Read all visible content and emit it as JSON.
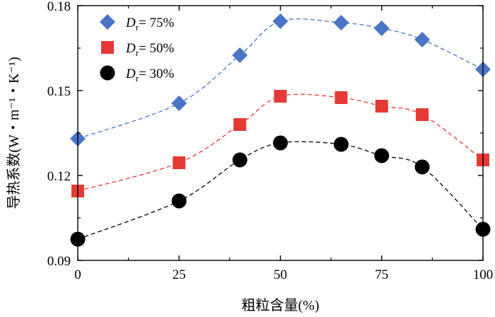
{
  "chart_data": {
    "type": "scatter",
    "xlabel": "粗粒含量(%)",
    "ylabel": "导热系数(W・m⁻¹・K⁻¹)",
    "xlim": [
      0,
      100
    ],
    "ylim": [
      0.09,
      0.18
    ],
    "x_ticks": [
      "0",
      "25",
      "50",
      "75",
      "100"
    ],
    "y_ticks": [
      "0.09",
      "0.12",
      "0.15",
      "0.18"
    ],
    "x": [
      0,
      25,
      40,
      50,
      65,
      75,
      85,
      100
    ],
    "grid": false,
    "legend_position": "top-left",
    "series": [
      {
        "name": "Dr= 75%",
        "legend_var": "D",
        "legend_sub": "r",
        "legend_rest": "= 75%",
        "marker": "diamond",
        "color": "#4a74c5",
        "values": [
          0.133,
          0.1455,
          0.1625,
          0.1745,
          0.174,
          0.172,
          0.168,
          0.1575
        ]
      },
      {
        "name": "Dr= 50%",
        "legend_var": "D",
        "legend_sub": "r",
        "legend_rest": "= 50%",
        "marker": "square",
        "color": "#e53935",
        "values": [
          0.1145,
          0.1245,
          0.138,
          0.148,
          0.1475,
          0.1445,
          0.1415,
          0.1255
        ]
      },
      {
        "name": "Dr= 30%",
        "legend_var": "D",
        "legend_sub": "r",
        "legend_rest": "= 30%",
        "marker": "circle",
        "color": "#000000",
        "values": [
          0.0975,
          0.111,
          0.1255,
          0.1315,
          0.131,
          0.127,
          0.123,
          0.101
        ]
      }
    ]
  }
}
